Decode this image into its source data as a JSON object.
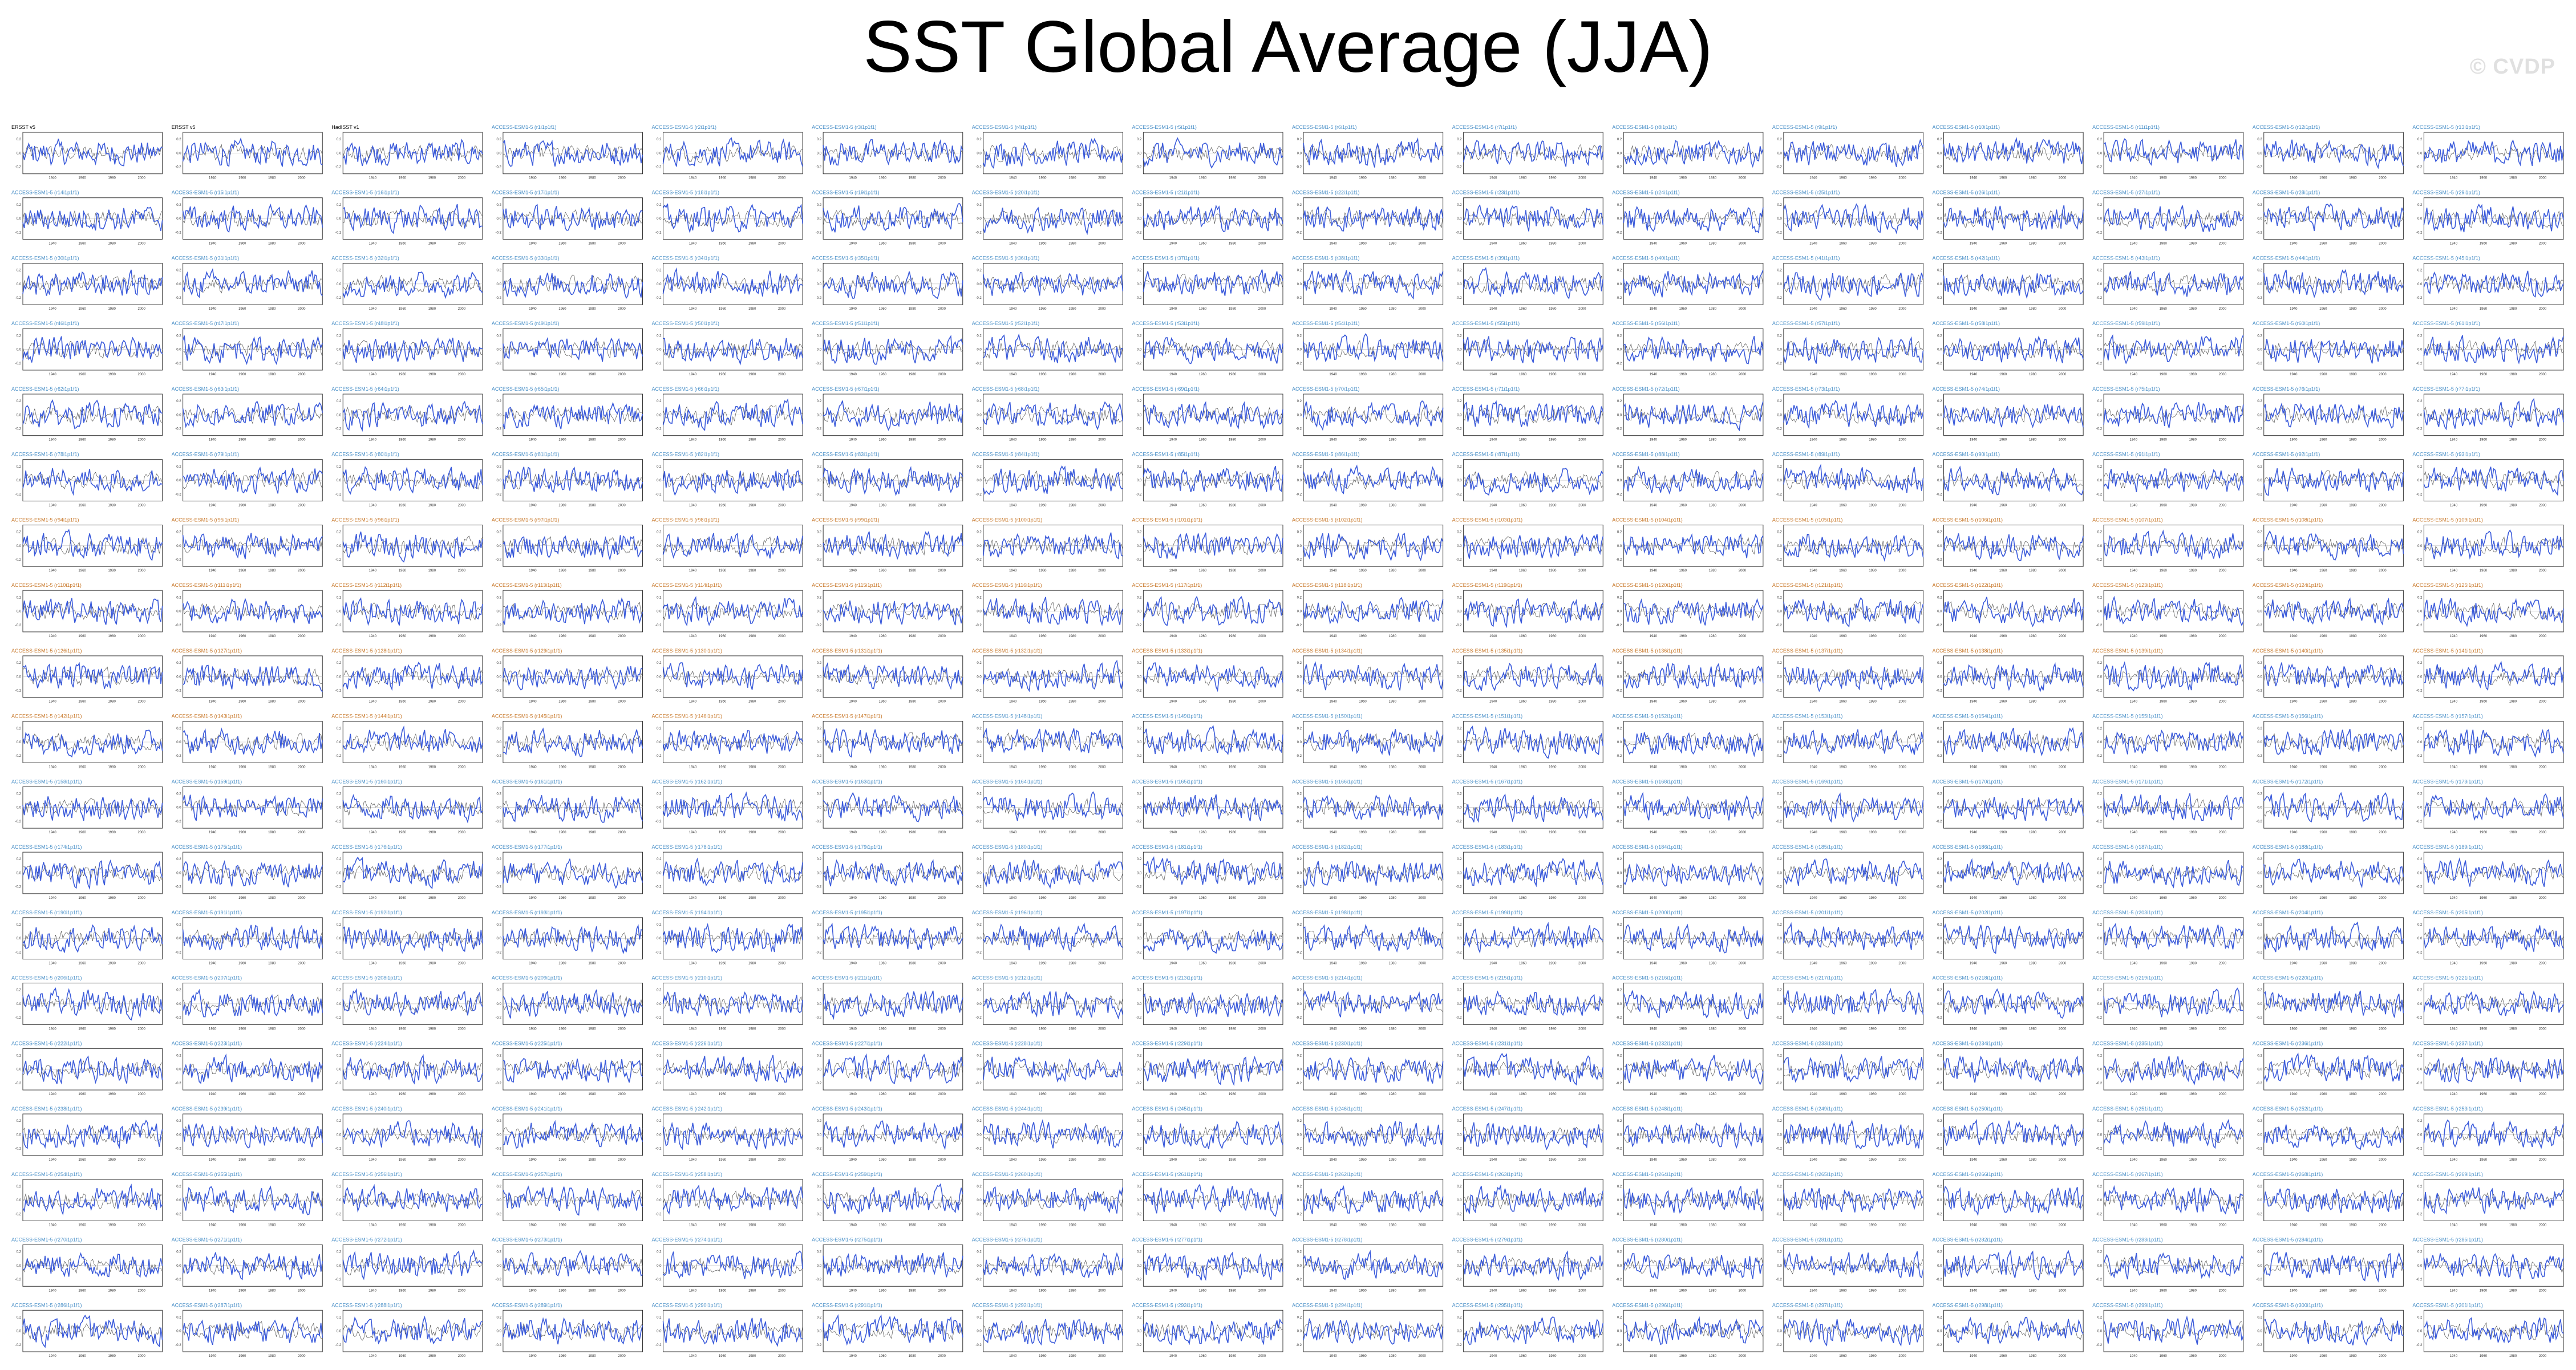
{
  "page": {
    "title": "SST Global Average (JJA)",
    "watermark": "© CVDP"
  },
  "chart_data": {
    "type": "line",
    "layout_note": "",
    "panel_grid": {
      "rows": 19,
      "cols": 16
    },
    "observation_panels": [
      "ERSST v5",
      "ERSST v5 ",
      "HadISST v1"
    ],
    "model_panel_prefix": "ACCESS-ESM1-5 ",
    "series": [
      {
        "name": "",
        "color": "#3b5bdb"
      },
      {
        "name": "",
        "color": "#555555"
      }
    ],
    "x_range": [
      1920,
      2014
    ],
    "x_ticks": [
      "1940",
      "1960",
      "1980",
      "2000"
    ],
    "y_range": [
      -0.3,
      0.3
    ],
    "y_ticks": [
      "0.2",
      "0.1",
      "0.0",
      "-0.1",
      "-0.2"
    ],
    "colors": {
      "model_title": "#4a90c8",
      "obs_title": "#000000",
      "alt_title": "#c8782a",
      "frame": "#333333"
    }
  }
}
